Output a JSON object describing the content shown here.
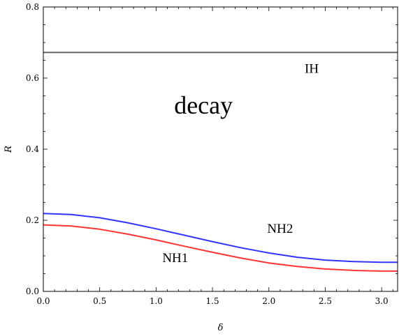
{
  "chart_data": {
    "type": "line",
    "xlabel": "δ",
    "ylabel": "R",
    "xlim": [
      0,
      3.1416
    ],
    "ylim": [
      0,
      0.8
    ],
    "xticks": [
      "0.0",
      "0.5",
      "1.0",
      "1.5",
      "2.0",
      "2.5",
      "3.0"
    ],
    "yticks": [
      "0.0",
      "0.2",
      "0.4",
      "0.6",
      "0.8"
    ],
    "grid": false,
    "series": [
      {
        "name": "IH",
        "color": "#666666",
        "x": [
          0,
          0.5,
          1.0,
          1.5,
          2.0,
          2.5,
          3.0,
          3.1416
        ],
        "y": [
          0.672,
          0.672,
          0.672,
          0.672,
          0.672,
          0.672,
          0.672,
          0.672
        ]
      },
      {
        "name": "NH2",
        "color": "#3333ff",
        "x": [
          0,
          0.25,
          0.5,
          0.75,
          1.0,
          1.25,
          1.5,
          1.75,
          2.0,
          2.25,
          2.5,
          2.75,
          3.0,
          3.1416
        ],
        "y": [
          0.219,
          0.216,
          0.207,
          0.193,
          0.176,
          0.158,
          0.14,
          0.123,
          0.108,
          0.096,
          0.088,
          0.084,
          0.082,
          0.082
        ]
      },
      {
        "name": "NH1",
        "color": "#ff3333",
        "x": [
          0,
          0.25,
          0.5,
          0.75,
          1.0,
          1.25,
          1.5,
          1.75,
          2.0,
          2.25,
          2.5,
          2.75,
          3.0,
          3.1416
        ],
        "y": [
          0.187,
          0.184,
          0.175,
          0.161,
          0.145,
          0.127,
          0.11,
          0.094,
          0.08,
          0.07,
          0.063,
          0.059,
          0.057,
          0.057
        ]
      }
    ],
    "annotations": [
      {
        "text": "IH",
        "x": 2.38,
        "y": 0.615
      },
      {
        "text": "decay",
        "x": 1.42,
        "y": 0.5
      },
      {
        "text": "NH2",
        "x": 2.1,
        "y": 0.165
      },
      {
        "text": "NH1",
        "x": 1.17,
        "y": 0.082
      }
    ]
  }
}
